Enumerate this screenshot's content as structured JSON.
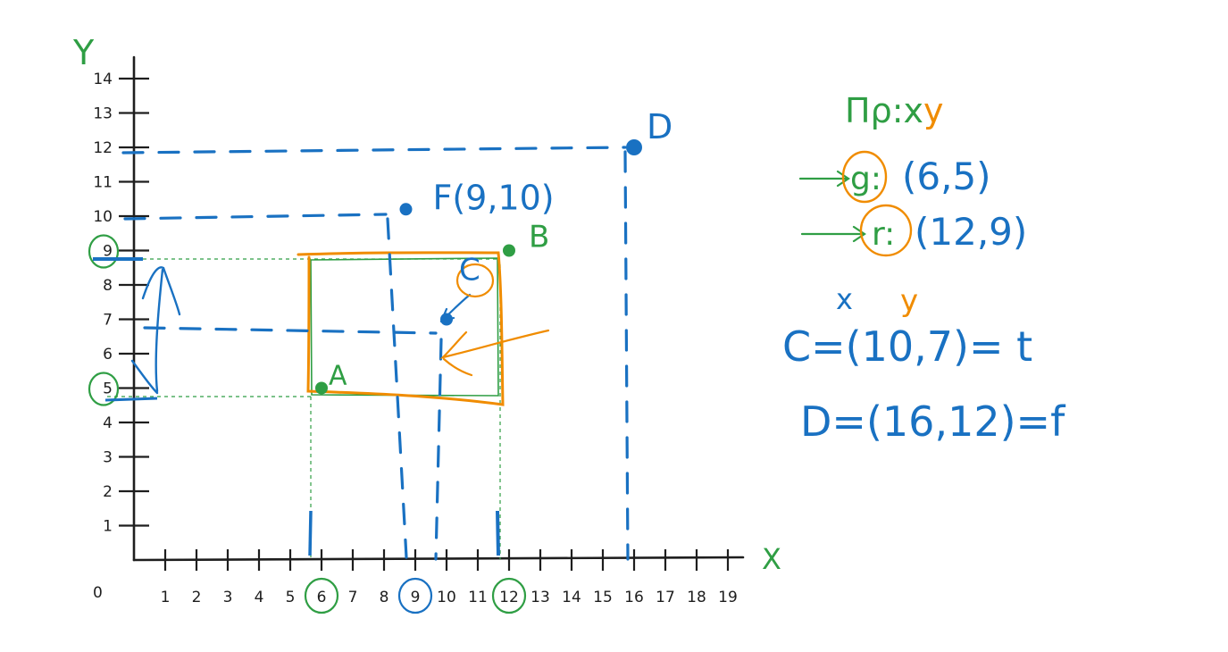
{
  "axes": {
    "x_label": "X",
    "y_label": "Y",
    "origin_label": "0",
    "x_ticks": [
      "1",
      "2",
      "3",
      "4",
      "5",
      "6",
      "7",
      "8",
      "9",
      "10",
      "11",
      "12",
      "13",
      "14",
      "15",
      "16",
      "17",
      "18",
      "19"
    ],
    "y_ticks": [
      "1",
      "2",
      "3",
      "4",
      "5",
      "6",
      "7",
      "8",
      "9",
      "10",
      "11",
      "12",
      "13",
      "14"
    ],
    "circled_x_ticks": [
      {
        "value": 6,
        "color": "#2f9e44"
      },
      {
        "value": 9,
        "color": "#1971c2"
      },
      {
        "value": 12,
        "color": "#2f9e44"
      }
    ],
    "circled_y_ticks": [
      {
        "value": 9,
        "color": "#2f9e44"
      },
      {
        "value": 5,
        "color": "#2f9e44"
      }
    ]
  },
  "points": {
    "A": {
      "label": "A",
      "x": 6,
      "y": 5,
      "color": "#2f9e44"
    },
    "B": {
      "label": "B",
      "x": 12,
      "y": 9,
      "color": "#2f9e44"
    },
    "C": {
      "label": "C",
      "x": 10,
      "y": 7,
      "color": "#1971c2"
    },
    "F": {
      "label": "F(9,10)",
      "x": 8.7,
      "y": 10.2,
      "color": "#1971c2"
    },
    "D": {
      "label": "D",
      "x": 16,
      "y": 12,
      "color": "#1971c2"
    }
  },
  "notes": {
    "heading_prefix": "Πρ:x",
    "heading_suffix": "y",
    "line1_letter": "g:",
    "line1_coords": "(6,5)",
    "line2_letter": "r:",
    "line2_coords": "(12,9)",
    "c_x_marker": "x",
    "c_y_marker": "y",
    "c_line": "C=(10,7)= t",
    "d_line": "D=(16,12)=f"
  },
  "colors": {
    "ink": "#1e1e1e",
    "blue": "#1971c2",
    "green": "#2f9e44",
    "orange": "#f08c00"
  }
}
